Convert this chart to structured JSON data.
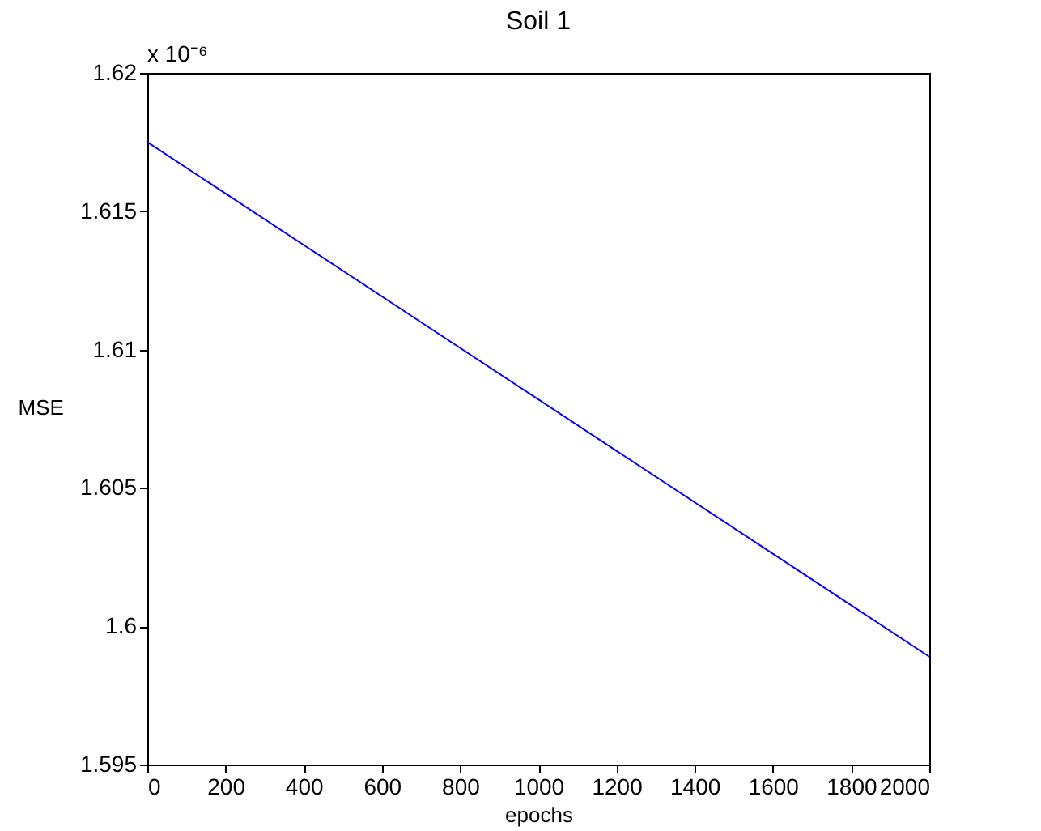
{
  "chart_data": {
    "type": "line",
    "title": "Soil 1",
    "xlabel": "epochs",
    "ylabel": "MSE",
    "x": [
      0,
      2000
    ],
    "series": [
      {
        "color": "#0000ff",
        "values": [
          1.6175,
          1.5989
        ]
      }
    ],
    "xlim": [
      0,
      2000
    ],
    "xticks": [
      0,
      200,
      400,
      600,
      800,
      1000,
      1200,
      1400,
      1600,
      1800,
      2000
    ],
    "ylim": [
      1.595,
      1.62
    ],
    "yticks": [
      1.595,
      1.6,
      1.605,
      1.61,
      1.615,
      1.62
    ],
    "annotations": [
      "x 10⁻⁶"
    ],
    "grid": false,
    "marker": "none",
    "line_style": "solid"
  }
}
